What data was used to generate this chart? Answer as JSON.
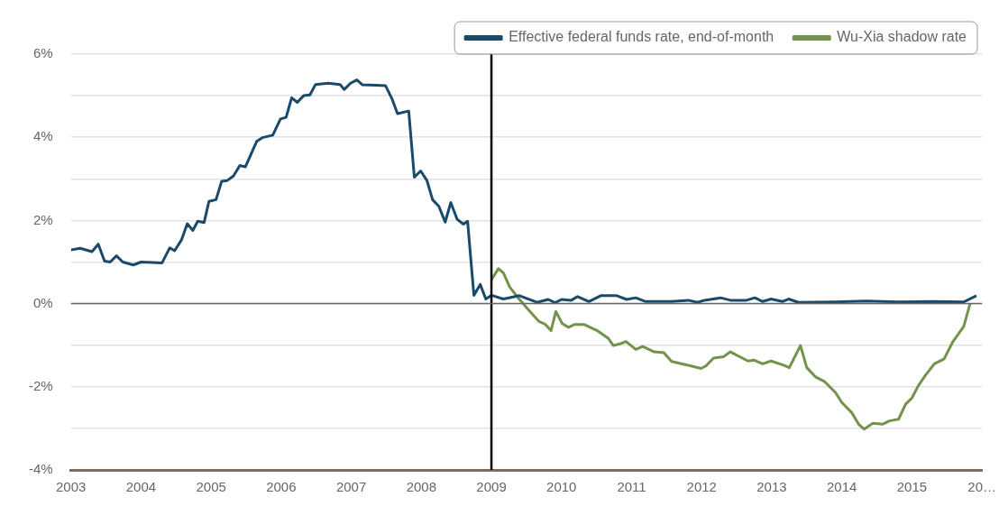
{
  "chart_data": {
    "type": "line",
    "xlim": [
      2003,
      2016
    ],
    "xticks": [
      2003,
      2004,
      2005,
      2006,
      2007,
      2008,
      2009,
      2010,
      2011,
      2012,
      2013,
      2014,
      2015,
      {
        "value": 2016,
        "label": "20…"
      }
    ],
    "ylim": [
      -4,
      6
    ],
    "yticks": [
      {
        "value": -4,
        "label": "-4%"
      },
      {
        "value": -3,
        "label": null
      },
      {
        "value": -2,
        "label": "-2%"
      },
      {
        "value": -1,
        "label": null
      },
      {
        "value": 0,
        "label": "0%"
      },
      {
        "value": 1,
        "label": null
      },
      {
        "value": 2,
        "label": "2%"
      },
      {
        "value": 3,
        "label": null
      },
      {
        "value": 4,
        "label": "4%"
      },
      {
        "value": 5,
        "label": null
      },
      {
        "value": 6,
        "label": "6%"
      }
    ],
    "grid": "y",
    "legend": "top right",
    "marker": "none",
    "line_style": "solid",
    "ref_lines": [
      {
        "axis": "x",
        "value": 2009,
        "label": null,
        "color": "#000000"
      },
      {
        "axis": "y",
        "value": 0,
        "label": null,
        "color": "#666666"
      }
    ],
    "series": [
      {
        "name": "Effective federal funds rate, end-of-month",
        "color": "#1a4a6b",
        "x": [
          2003.0,
          2003.13,
          2003.3,
          2003.39,
          2003.48,
          2003.56,
          2003.65,
          2003.74,
          2003.89,
          2004.0,
          2004.3,
          2004.41,
          2004.48,
          2004.58,
          2004.66,
          2004.74,
          2004.81,
          2004.9,
          2004.97,
          2005.07,
          2005.15,
          2005.23,
          2005.32,
          2005.41,
          2005.49,
          2005.65,
          2005.73,
          2005.88,
          2005.99,
          2006.07,
          2006.15,
          2006.23,
          2006.32,
          2006.41,
          2006.49,
          2006.67,
          2006.84,
          2006.9,
          2006.99,
          2007.08,
          2007.16,
          2007.36,
          2007.49,
          2007.58,
          2007.66,
          2007.82,
          2007.9,
          2007.99,
          2008.08,
          2008.16,
          2008.25,
          2008.34,
          2008.42,
          2008.51,
          2008.6,
          2008.66,
          2008.75,
          2008.84,
          2008.92,
          2009.0,
          2009.17,
          2009.4,
          2009.65,
          2009.81,
          2009.91,
          2010.0,
          2010.14,
          2010.23,
          2010.39,
          2010.56,
          2010.79,
          2010.93,
          2011.06,
          2011.2,
          2011.57,
          2011.81,
          2011.94,
          2012.04,
          2012.27,
          2012.41,
          2012.64,
          2012.76,
          2012.87,
          2012.99,
          2013.15,
          2013.24,
          2013.38,
          2013.89,
          2014.35,
          2014.81,
          2015.28,
          2015.74,
          2015.92
        ],
        "values": [
          1.29,
          1.33,
          1.25,
          1.43,
          1.02,
          1.0,
          1.15,
          1.0,
          0.93,
          1.0,
          0.98,
          1.34,
          1.27,
          1.54,
          1.92,
          1.76,
          1.98,
          1.95,
          2.46,
          2.5,
          2.94,
          2.96,
          3.07,
          3.32,
          3.29,
          3.9,
          3.99,
          4.05,
          4.44,
          4.48,
          4.95,
          4.84,
          5.0,
          5.02,
          5.27,
          5.3,
          5.27,
          5.15,
          5.3,
          5.38,
          5.26,
          5.25,
          5.24,
          4.93,
          4.57,
          4.63,
          3.04,
          3.19,
          2.96,
          2.5,
          2.34,
          1.96,
          2.43,
          2.03,
          1.91,
          1.98,
          0.2,
          0.46,
          0.11,
          0.2,
          0.11,
          0.19,
          0.03,
          0.1,
          0.02,
          0.1,
          0.08,
          0.17,
          0.05,
          0.19,
          0.19,
          0.1,
          0.14,
          0.05,
          0.05,
          0.08,
          0.03,
          0.08,
          0.14,
          0.08,
          0.08,
          0.14,
          0.05,
          0.11,
          0.05,
          0.11,
          0.03,
          0.04,
          0.06,
          0.04,
          0.05,
          0.04,
          0.19
        ]
      },
      {
        "name": "Wu-Xia shadow rate",
        "color": "#74934a",
        "x": [
          2009.0,
          2009.1,
          2009.17,
          2009.26,
          2009.4,
          2009.54,
          2009.68,
          2009.77,
          2009.85,
          2009.92,
          2010.01,
          2010.1,
          2010.19,
          2010.32,
          2010.51,
          2010.67,
          2010.74,
          2010.83,
          2010.92,
          2011.06,
          2011.16,
          2011.32,
          2011.46,
          2011.57,
          2011.85,
          2011.99,
          2012.06,
          2012.17,
          2012.31,
          2012.41,
          2012.66,
          2012.75,
          2012.87,
          2012.99,
          2013.17,
          2013.25,
          2013.41,
          2013.5,
          2013.63,
          2013.75,
          2013.91,
          2014.0,
          2014.14,
          2014.24,
          2014.32,
          2014.44,
          2014.58,
          2014.68,
          2014.81,
          2014.91,
          2015.0,
          2015.09,
          2015.19,
          2015.32,
          2015.46,
          2015.58,
          2015.74,
          2015.83
        ],
        "values": [
          0.57,
          0.84,
          0.74,
          0.4,
          0.1,
          -0.17,
          -0.43,
          -0.5,
          -0.65,
          -0.19,
          -0.48,
          -0.57,
          -0.5,
          -0.5,
          -0.65,
          -0.84,
          -1.01,
          -0.97,
          -0.91,
          -1.1,
          -1.03,
          -1.16,
          -1.18,
          -1.39,
          -1.5,
          -1.56,
          -1.5,
          -1.31,
          -1.28,
          -1.16,
          -1.38,
          -1.36,
          -1.45,
          -1.38,
          -1.48,
          -1.54,
          -1.01,
          -1.54,
          -1.77,
          -1.87,
          -2.14,
          -2.38,
          -2.62,
          -2.9,
          -3.02,
          -2.88,
          -2.9,
          -2.82,
          -2.78,
          -2.42,
          -2.27,
          -1.98,
          -1.73,
          -1.45,
          -1.33,
          -0.93,
          -0.55,
          0.0
        ]
      }
    ]
  }
}
